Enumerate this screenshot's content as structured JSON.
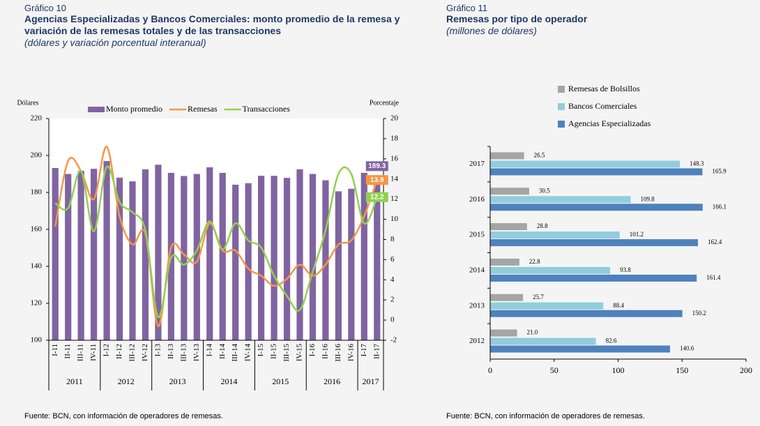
{
  "chart_data": [
    {
      "type": "bar-line",
      "label": "Gráfico 10",
      "title": "Agencias Especializadas y Bancos Comerciales: monto promedio de la remesa y variación de las remesas totales y de las transacciones",
      "subtitle": "(dólares y variación porcentual interanual)",
      "source": "Fuente: BCN, con información de operadores de remesas.",
      "ylabel": "Dólares",
      "y2label": "Porcentaje",
      "categories": [
        "I-11",
        "II-11",
        "III-11",
        "IV-11",
        "I-12",
        "II-12",
        "III-12",
        "IV-12",
        "I-13",
        "II-13",
        "III-13",
        "IV-13",
        "I-14",
        "II-14",
        "III-14",
        "IV-14",
        "I-15",
        "II-15",
        "III-15",
        "IV-15",
        "I-16",
        "II-16",
        "III-16",
        "IV-16",
        "I-17",
        "II-17"
      ],
      "groups": [
        "2011",
        "2012",
        "2013",
        "2014",
        "2015",
        "2016",
        "2017"
      ],
      "series": [
        {
          "name": "Monto promedio",
          "type": "bar",
          "color": "#8064a2",
          "values": [
            193.2,
            190,
            191.7,
            192.8,
            197,
            188,
            186,
            192.5,
            195,
            190.6,
            188.9,
            190,
            193.6,
            190.6,
            184.2,
            185,
            189,
            189,
            187.9,
            192.5,
            190,
            186.6,
            180.6,
            182,
            190.6,
            189.3
          ]
        },
        {
          "name": "Remesas",
          "type": "line",
          "axis": "y2",
          "color": "#f79646",
          "values": [
            9.3,
            15.8,
            14.8,
            12,
            17.2,
            10.3,
            7.5,
            8.6,
            -0.6,
            7.2,
            6.5,
            5.8,
            9.6,
            6.9,
            6.9,
            5.1,
            4.4,
            3.4,
            4.1,
            5.5,
            4.4,
            5.5,
            7.5,
            7.9,
            10.3,
            13.9
          ]
        },
        {
          "name": "Transacciones",
          "type": "line",
          "axis": "y2",
          "color": "#92d050",
          "values": [
            11.6,
            11.1,
            14.8,
            8.8,
            15.2,
            11.7,
            10.7,
            8.9,
            0.3,
            6.2,
            5.5,
            6.9,
            9.8,
            7,
            9.6,
            7.9,
            7.2,
            4.4,
            2.4,
            1,
            4.8,
            8.9,
            14.5,
            14.5,
            9.6,
            12.2
          ]
        }
      ],
      "ylim": [
        100,
        220
      ],
      "yticks": [
        100,
        120,
        140,
        160,
        180,
        200,
        220
      ],
      "y2lim": [
        -2,
        20
      ],
      "y2ticks": [
        -2,
        0,
        2,
        4,
        6,
        8,
        10,
        12,
        14,
        16,
        18,
        20
      ]
    },
    {
      "type": "hbar",
      "label": "Gráfico 11",
      "title": "Remesas por tipo de operador",
      "subtitle": "(millones de dólares)",
      "source": "Fuente: BCN, con información de operadores de remesas.",
      "categories": [
        "2017",
        "2016",
        "2015",
        "2014",
        "2013",
        "2012"
      ],
      "series": [
        {
          "name": "Remesas de Bolsillos",
          "color": "#a5a5a5",
          "values": [
            26.5,
            30.5,
            28.8,
            22.8,
            25.7,
            21.0
          ],
          "value_labels": [
            "26.5",
            "30.5",
            "28.8",
            "22.8",
            "25.7",
            "21.0"
          ]
        },
        {
          "name": "Bancos Comerciales",
          "color": "#92cddc",
          "values": [
            148.3,
            109.8,
            101.2,
            93.8,
            88.4,
            82.6
          ]
        },
        {
          "name": "Agencias Especializadas",
          "color": "#4f81bd",
          "values": [
            165.9,
            166.1,
            162.4,
            161.4,
            150.2,
            140.6
          ]
        }
      ],
      "xlim": [
        0,
        200
      ],
      "xticks": [
        0,
        50,
        100,
        150,
        200
      ]
    }
  ]
}
